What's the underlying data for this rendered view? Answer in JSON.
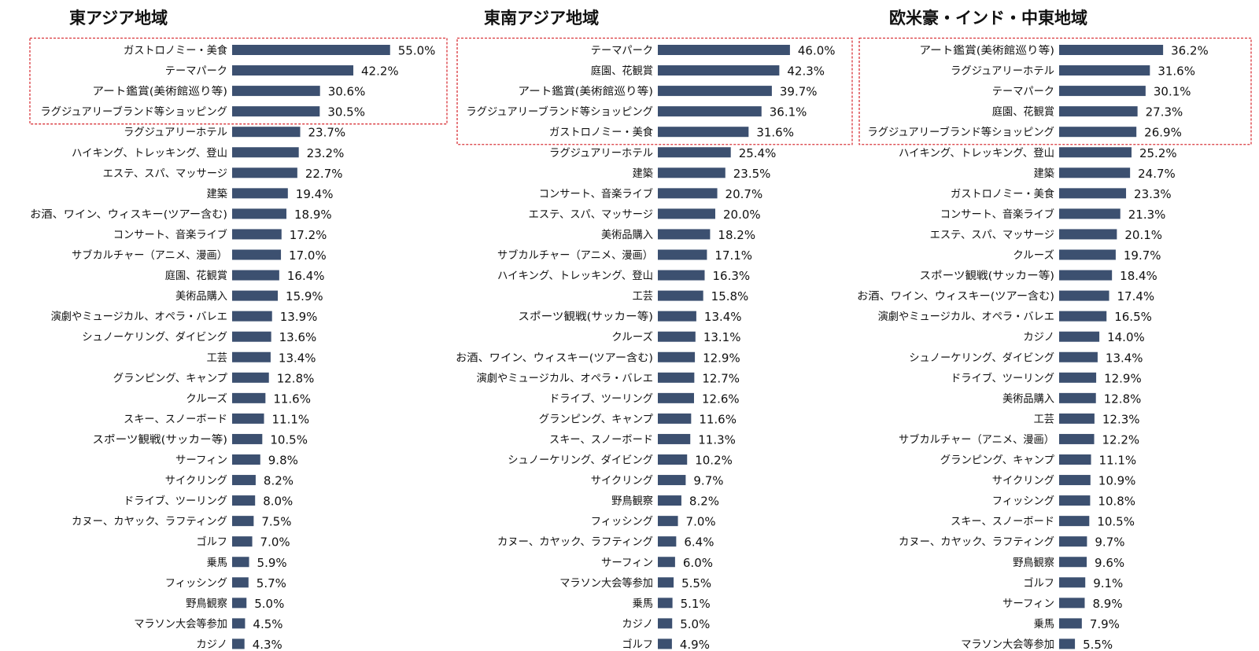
{
  "chart_data": [
    {
      "type": "bar",
      "orientation": "horizontal",
      "title": "東アジア地域",
      "highlight_top": 4,
      "categories": [
        "ガストロノミー・美食",
        "テーマパーク",
        "アート鑑賞(美術館巡り等)",
        "ラグジュアリーブランド等ショッピング",
        "ラグジュアリーホテル",
        "ハイキング、トレッキング、登山",
        "エステ、スパ、マッサージ",
        "建築",
        "お酒、ワイン、ウィスキー(ツアー含む)",
        "コンサート、音楽ライブ",
        "サブカルチャー（アニメ、漫画）",
        "庭園、花観賞",
        "美術品購入",
        "演劇やミュージカル、オペラ・バレエ",
        "シュノーケリング、ダイビング",
        "工芸",
        "グランピング、キャンプ",
        "クルーズ",
        "スキー、スノーボード",
        "スポーツ観戦(サッカー等)",
        "サーフィン",
        "サイクリング",
        "ドライブ、ツーリング",
        "カヌー、カヤック、ラフティング",
        "ゴルフ",
        "乗馬",
        "フィッシング",
        "野鳥観察",
        "マラソン大会等参加",
        "カジノ"
      ],
      "values": [
        55.0,
        42.2,
        30.6,
        30.5,
        23.7,
        23.2,
        22.7,
        19.4,
        18.9,
        17.2,
        17.0,
        16.4,
        15.9,
        13.9,
        13.6,
        13.4,
        12.8,
        11.6,
        11.1,
        10.5,
        9.8,
        8.2,
        8.0,
        7.5,
        7.0,
        5.9,
        5.7,
        5.0,
        4.5,
        4.3
      ],
      "value_labels": [
        "55.0%",
        "42.2%",
        "30.6%",
        "30.5%",
        "23.7%",
        "23.2%",
        "22.7%",
        "19.4%",
        "18.9%",
        "17.2%",
        "17.0%",
        "16.4%",
        "15.9%",
        "13.9%",
        "13.6%",
        "13.4%",
        "12.8%",
        "11.6%",
        "11.1%",
        "10.5%",
        "9.8%",
        "8.2%",
        "8.0%",
        "7.5%",
        "7.0%",
        "5.9%",
        "5.7%",
        "5.0%",
        "4.5%",
        "4.3%"
      ]
    },
    {
      "type": "bar",
      "orientation": "horizontal",
      "title": "東南アジア地域",
      "highlight_top": 5,
      "categories": [
        "テーマパーク",
        "庭園、花観賞",
        "アート鑑賞(美術館巡り等)",
        "ラグジュアリーブランド等ショッピング",
        "ガストロノミー・美食",
        "ラグジュアリーホテル",
        "建築",
        "コンサート、音楽ライブ",
        "エステ、スパ、マッサージ",
        "美術品購入",
        "サブカルチャー（アニメ、漫画）",
        "ハイキング、トレッキング、登山",
        "工芸",
        "スポーツ観戦(サッカー等)",
        "クルーズ",
        "お酒、ワイン、ウィスキー(ツアー含む)",
        "演劇やミュージカル、オペラ・バレエ",
        "ドライブ、ツーリング",
        "グランピング、キャンプ",
        "スキー、スノーボード",
        "シュノーケリング、ダイビング",
        "サイクリング",
        "野鳥観察",
        "フィッシング",
        "カヌー、カヤック、ラフティング",
        "サーフィン",
        "マラソン大会等参加",
        "乗馬",
        "カジノ",
        "ゴルフ"
      ],
      "values": [
        46.0,
        42.3,
        39.7,
        36.1,
        31.6,
        25.4,
        23.5,
        20.7,
        20.0,
        18.2,
        17.1,
        16.3,
        15.8,
        13.4,
        13.1,
        12.9,
        12.7,
        12.6,
        11.6,
        11.3,
        10.2,
        9.7,
        8.2,
        7.0,
        6.4,
        6.0,
        5.5,
        5.1,
        5.0,
        4.9
      ],
      "value_labels": [
        "46.0%",
        "42.3%",
        "39.7%",
        "36.1%",
        "31.6%",
        "25.4%",
        "23.5%",
        "20.7%",
        "20.0%",
        "18.2%",
        "17.1%",
        "16.3%",
        "15.8%",
        "13.4%",
        "13.1%",
        "12.9%",
        "12.7%",
        "12.6%",
        "11.6%",
        "11.3%",
        "10.2%",
        "9.7%",
        "8.2%",
        "7.0%",
        "6.4%",
        "6.0%",
        "5.5%",
        "5.1%",
        "5.0%",
        "4.9%"
      ]
    },
    {
      "type": "bar",
      "orientation": "horizontal",
      "title": "欧米豪・インド・中東地域",
      "highlight_top": 5,
      "categories": [
        "アート鑑賞(美術館巡り等)",
        "ラグジュアリーホテル",
        "テーマパーク",
        "庭園、花観賞",
        "ラグジュアリーブランド等ショッピング",
        "ハイキング、トレッキング、登山",
        "建築",
        "ガストロノミー・美食",
        "コンサート、音楽ライブ",
        "エステ、スパ、マッサージ",
        "クルーズ",
        "スポーツ観戦(サッカー等)",
        "お酒、ワイン、ウィスキー(ツアー含む)",
        "演劇やミュージカル、オペラ・バレエ",
        "カジノ",
        "シュノーケリング、ダイビング",
        "ドライブ、ツーリング",
        "美術品購入",
        "工芸",
        "サブカルチャー（アニメ、漫画）",
        "グランピング、キャンプ",
        "サイクリング",
        "フィッシング",
        "スキー、スノーボード",
        "カヌー、カヤック、ラフティング",
        "野鳥観察",
        "ゴルフ",
        "サーフィン",
        "乗馬",
        "マラソン大会等参加"
      ],
      "values": [
        36.2,
        31.6,
        30.1,
        27.3,
        26.9,
        25.2,
        24.7,
        23.3,
        21.3,
        20.1,
        19.7,
        18.4,
        17.4,
        16.5,
        14.0,
        13.4,
        12.9,
        12.8,
        12.3,
        12.2,
        11.1,
        10.9,
        10.8,
        10.5,
        9.7,
        9.6,
        9.1,
        8.9,
        7.9,
        5.5
      ],
      "value_labels": [
        "36.2%",
        "31.6%",
        "30.1%",
        "27.3%",
        "26.9%",
        "25.2%",
        "24.7%",
        "23.3%",
        "21.3%",
        "20.1%",
        "19.7%",
        "18.4%",
        "17.4%",
        "16.5%",
        "14.0%",
        "13.4%",
        "12.9%",
        "12.8%",
        "12.3%",
        "12.2%",
        "11.1%",
        "10.9%",
        "10.8%",
        "10.5%",
        "9.7%",
        "9.6%",
        "9.1%",
        "8.9%",
        "7.9%",
        "5.5%"
      ]
    }
  ],
  "colors": {
    "bar": "#3c5070",
    "highlight": "#d9343a"
  }
}
